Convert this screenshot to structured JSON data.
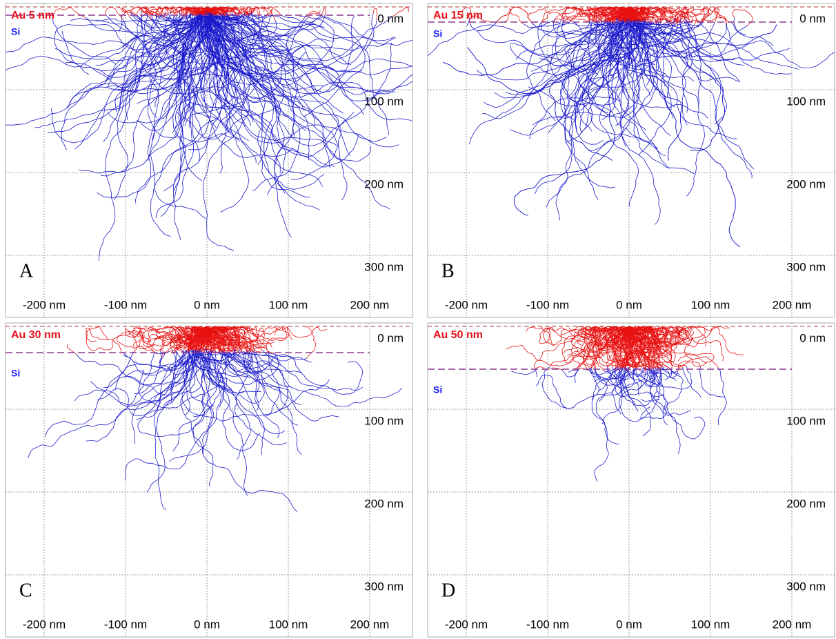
{
  "panels": [
    {
      "letter": "A",
      "film": "Au 5 nm",
      "substrate": "Si",
      "xticks": [
        "-200 nm",
        "-100 nm",
        "0 nm",
        "100 nm",
        "200 nm"
      ],
      "yticks": [
        "0 nm",
        "100 nm",
        "200 nm",
        "300 nm"
      ]
    },
    {
      "letter": "B",
      "film": "Au 15 nm",
      "substrate": "Si",
      "xticks": [
        "-200 nm",
        "-100 nm",
        "0 nm",
        "100 nm",
        "200 nm"
      ],
      "yticks": [
        "0 nm",
        "100 nm",
        "200 nm",
        "300 nm"
      ]
    },
    {
      "letter": "C",
      "film": "Au 30 nm",
      "substrate": "Si",
      "xticks": [
        "-200 nm",
        "-100 nm",
        "0 nm",
        "100 nm",
        "200 nm"
      ],
      "yticks": [
        "0 nm",
        "100 nm",
        "200 nm",
        "300 nm"
      ]
    },
    {
      "letter": "D",
      "film": "Au 50 nm",
      "substrate": "Si",
      "xticks": [
        "-200 nm",
        "-100 nm",
        "0 nm",
        "100 nm",
        "200 nm"
      ],
      "yticks": [
        "0 nm",
        "100 nm",
        "200 nm",
        "300 nm"
      ]
    }
  ]
}
